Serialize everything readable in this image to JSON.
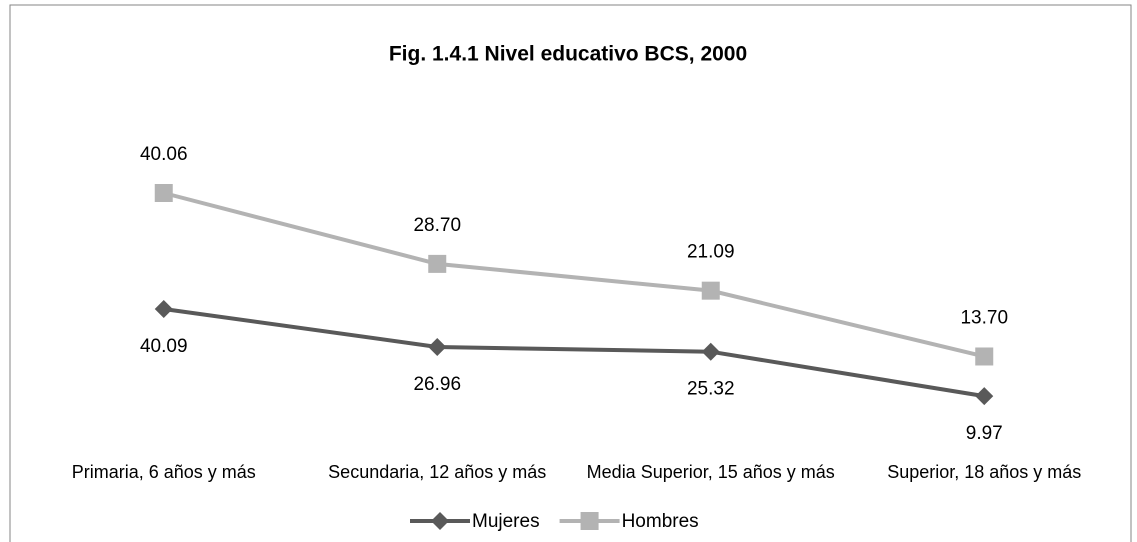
{
  "chart_data": {
    "type": "line",
    "stacked": true,
    "title": "Fig. 1.4.1 Nivel educativo BCS, 2000",
    "categories": [
      "Primaria, 6 años y más",
      "Secundaria, 12 años y más",
      "Media Superior, 15 años y más",
      "Superior, 18 años y más"
    ],
    "series": [
      {
        "name": "Mujeres",
        "color": "#595959",
        "marker": "diamond",
        "values": [
          40.09,
          26.96,
          25.32,
          9.97
        ],
        "value_labels": [
          "40.09",
          "26.96",
          "25.32",
          "9.97"
        ]
      },
      {
        "name": "Hombres",
        "color": "#b3b3b3",
        "marker": "square",
        "values": [
          40.06,
          28.7,
          21.09,
          13.7
        ],
        "value_labels": [
          "40.06",
          "28.70",
          "21.09",
          "13.70"
        ]
      }
    ],
    "legend": "bottom"
  }
}
